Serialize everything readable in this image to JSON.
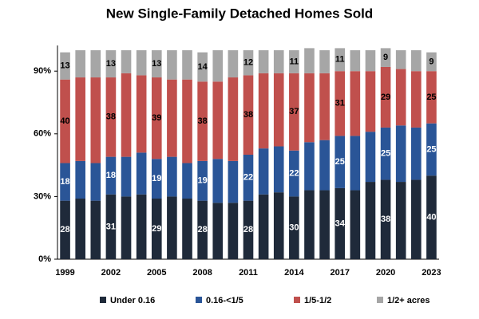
{
  "chart_data": {
    "type": "stacked_bar",
    "title": "New Single-Family Detached Homes Sold",
    "categories": [
      "1999",
      null,
      null,
      "2002",
      null,
      null,
      "2005",
      null,
      null,
      "2008",
      null,
      null,
      "2011",
      null,
      null,
      "2014",
      null,
      null,
      "2017",
      null,
      null,
      "2020",
      null,
      null,
      "2023"
    ],
    "series": [
      {
        "name": "Under 0.16",
        "color": "#1f2a3a",
        "values": [
          28,
          29,
          28,
          31,
          30,
          31,
          29,
          30,
          29,
          28,
          27,
          27,
          28,
          31,
          32,
          30,
          33,
          33,
          34,
          33,
          37,
          38,
          37,
          38,
          40
        ]
      },
      {
        "name": "0.16-<1/5",
        "color": "#2a5597",
        "values": [
          18,
          18,
          18,
          18,
          19,
          20,
          19,
          19,
          17,
          19,
          21,
          20,
          22,
          22,
          22,
          22,
          23,
          24,
          25,
          26,
          24,
          25,
          27,
          25,
          25
        ]
      },
      {
        "name": "1/5-1/2",
        "color": "#c0504d",
        "values": [
          40,
          40,
          41,
          38,
          40,
          37,
          39,
          37,
          40,
          38,
          37,
          40,
          38,
          36,
          35,
          37,
          33,
          32,
          31,
          31,
          29,
          29,
          27,
          27,
          25
        ]
      },
      {
        "name": "1/2+ acres",
        "color": "#a6a6a6",
        "values": [
          13,
          13,
          13,
          13,
          11,
          12,
          13,
          14,
          14,
          14,
          15,
          13,
          12,
          11,
          11,
          11,
          12,
          11,
          11,
          10,
          10,
          9,
          9,
          10,
          9
        ]
      }
    ],
    "ylim": [
      0,
      100
    ],
    "yticks": [
      {
        "value": 0,
        "label": "0%"
      },
      {
        "value": 30,
        "label": "30%"
      },
      {
        "value": 60,
        "label": "60%"
      },
      {
        "value": 90,
        "label": "90%"
      }
    ]
  }
}
